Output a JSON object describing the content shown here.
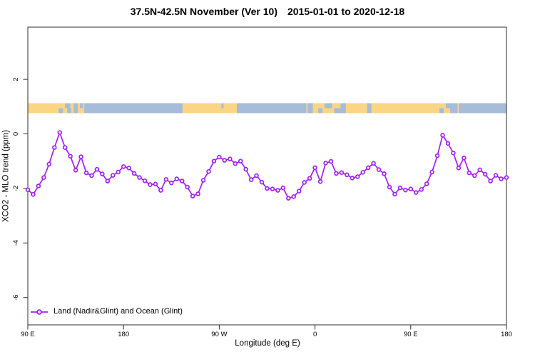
{
  "title": {
    "left": "37.5N-42.5N November (Ver 10)",
    "right": "2015-01-01 to 2020-12-18"
  },
  "axes": {
    "x_label": "Longitude (deg E)",
    "y_label": "XCO2 - MLO trend (ppm)",
    "x_ticks": [
      {
        "label": "90 E",
        "deg": 90
      },
      {
        "label": "180",
        "deg": 180
      },
      {
        "label": "90 W",
        "deg": 270
      },
      {
        "label": "0",
        "deg": 360
      },
      {
        "label": "90 E",
        "deg": 450
      },
      {
        "label": "180",
        "deg": 540
      }
    ],
    "y_ticks": [
      {
        "label": "2",
        "value": 2
      },
      {
        "label": "0",
        "value": 0
      },
      {
        "label": "-2",
        "value": -2
      },
      {
        "label": "-4",
        "value": -4
      },
      {
        "label": "-6",
        "value": -6
      }
    ]
  },
  "legend": {
    "label": "Land (Nadir&Glint) and Ocean (Glint)"
  },
  "colors": {
    "series": "#A020F0",
    "marker_fill": "#FFFFFF",
    "land": "#FAD584",
    "ocean": "#A6BCD9",
    "axis": "#2E2E2E",
    "text": "#000000",
    "background": "#FFFFFF"
  },
  "chart_data": {
    "type": "line",
    "title": "37.5N-42.5N November (Ver 10)  2015-01-01 to 2020-12-18",
    "xlabel": "Longitude (deg E)",
    "ylabel": "XCO2 - MLO trend (ppm)",
    "series_name": "Land (Nadir&Glint) and Ocean (Glint)",
    "xlim": [
      90,
      540
    ],
    "ylim": [
      -7,
      4
    ],
    "x_axis_note": "longitude unwrapped eastward from 90E; 450-540 repeats the 90E-180 sector",
    "grid": false,
    "legend_position": "bottom-left",
    "x": [
      90,
      95,
      100,
      105,
      110,
      115,
      120,
      125,
      130,
      135,
      140,
      145,
      150,
      155,
      160,
      165,
      170,
      175,
      180,
      185,
      190,
      195,
      200,
      205,
      210,
      215,
      220,
      225,
      230,
      235,
      240,
      245,
      250,
      255,
      260,
      265,
      270,
      275,
      280,
      285,
      290,
      295,
      300,
      305,
      310,
      315,
      320,
      325,
      330,
      335,
      340,
      345,
      350,
      355,
      360,
      365,
      370,
      375,
      380,
      385,
      390,
      395,
      400,
      405,
      410,
      415,
      420,
      425,
      430,
      435,
      440,
      445,
      450,
      455,
      460,
      465,
      470,
      475,
      480,
      485,
      490,
      495,
      500,
      505,
      510,
      515,
      520,
      525,
      530,
      535,
      540
    ],
    "values": [
      -2.05,
      -2.22,
      -1.91,
      -1.6,
      -1.11,
      -0.5,
      0.05,
      -0.5,
      -0.82,
      -1.33,
      -0.84,
      -1.43,
      -1.53,
      -1.3,
      -1.47,
      -1.73,
      -1.52,
      -1.4,
      -1.2,
      -1.25,
      -1.45,
      -1.6,
      -1.72,
      -1.86,
      -1.84,
      -2.07,
      -1.67,
      -1.8,
      -1.65,
      -1.73,
      -1.95,
      -2.28,
      -2.2,
      -1.7,
      -1.38,
      -1.0,
      -0.85,
      -0.97,
      -0.92,
      -1.09,
      -1.0,
      -1.3,
      -1.68,
      -1.53,
      -1.77,
      -2.0,
      -2.02,
      -2.07,
      -1.98,
      -2.36,
      -2.3,
      -2.1,
      -1.78,
      -1.63,
      -1.24,
      -1.75,
      -1.07,
      -1.01,
      -1.45,
      -1.42,
      -1.5,
      -1.62,
      -1.57,
      -1.41,
      -1.24,
      -1.08,
      -1.31,
      -1.46,
      -1.95,
      -2.21,
      -1.98,
      -2.06,
      -2.02,
      -2.15,
      -2.04,
      -1.83,
      -1.4,
      -0.8,
      -0.05,
      -0.35,
      -0.7,
      -1.25,
      -0.88,
      -1.43,
      -1.53,
      -1.32,
      -1.48,
      -1.73,
      -1.52,
      -1.65,
      -1.6
    ],
    "map_strip": {
      "description": "land/ocean longitude strip drawn across the plot near +1 ppm",
      "ppm_top": 1.13,
      "ppm_bottom": 0.76,
      "land_spans_deg": [
        [
          90,
          143
        ],
        [
          235.5,
          286.5
        ],
        [
          352,
          495
        ]
      ],
      "ocean_spans_deg": [
        [
          143,
          235.5
        ],
        [
          286.5,
          352
        ],
        [
          495,
          540
        ]
      ],
      "speckles_deg": [
        [
          119,
          123,
          "b"
        ],
        [
          125,
          130,
          "t"
        ],
        [
          127,
          131,
          "b"
        ],
        [
          133,
          137,
          "f"
        ],
        [
          139,
          142,
          "t"
        ],
        [
          272,
          274,
          "t"
        ],
        [
          353,
          358,
          "f"
        ],
        [
          363,
          367,
          "b"
        ],
        [
          369,
          376,
          "t"
        ],
        [
          378,
          384,
          "b"
        ],
        [
          384,
          389,
          "f"
        ],
        [
          409,
          413,
          "f"
        ],
        [
          477,
          481,
          "b"
        ],
        [
          483,
          487,
          "t"
        ],
        [
          487,
          494,
          "f"
        ]
      ]
    }
  }
}
